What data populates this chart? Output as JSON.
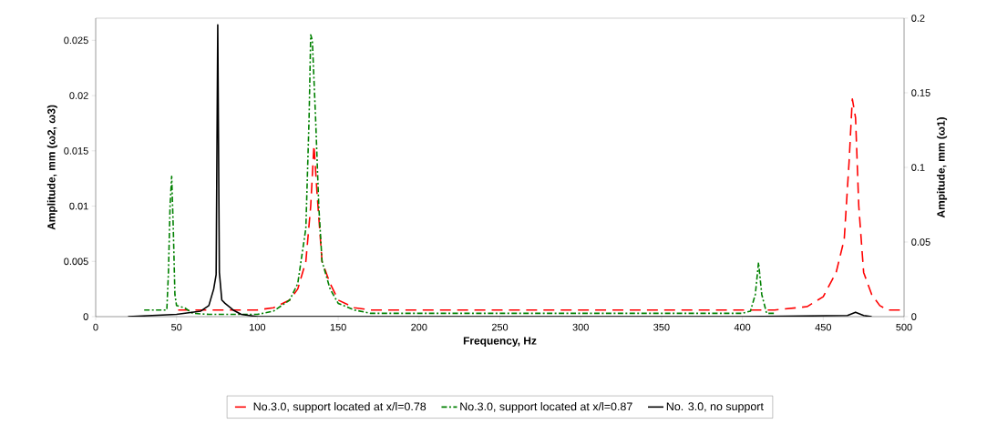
{
  "chart_data": {
    "type": "line",
    "xlabel": "Frequency, Hz",
    "ylabel": "Amplitude,  mm (ω2, ω3)",
    "y2label": "Ampitude,  mm (ω1)",
    "xlim": [
      0,
      500
    ],
    "xticks": [
      0,
      50,
      100,
      150,
      200,
      250,
      300,
      350,
      400,
      450,
      500
    ],
    "ylim": [
      0,
      0.027
    ],
    "yticks": [
      0,
      0.005,
      0.01,
      0.015,
      0.02,
      0.025
    ],
    "y2lim": [
      0,
      0.2
    ],
    "y2ticks": [
      0,
      0.05,
      0.1,
      0.15,
      0.2
    ],
    "legend": "bottom",
    "grid": false,
    "series": [
      {
        "name": "No.3.0, support located at x/l=0.78",
        "color": "#ff0000",
        "line_style": "dashed",
        "x": [
          51,
          70,
          100,
          110,
          120,
          125,
          130,
          133,
          135,
          137,
          140,
          145,
          150,
          160,
          170,
          250,
          350,
          420,
          440,
          450,
          458,
          463,
          466,
          468,
          470,
          472,
          475,
          480,
          485,
          490,
          500
        ],
        "values": [
          0.0006,
          0.0006,
          0.0006,
          0.0008,
          0.0015,
          0.0025,
          0.005,
          0.01,
          0.0155,
          0.011,
          0.005,
          0.003,
          0.0015,
          0.0008,
          0.0006,
          0.0006,
          0.0006,
          0.0006,
          0.0009,
          0.0018,
          0.004,
          0.007,
          0.014,
          0.0197,
          0.018,
          0.01,
          0.004,
          0.002,
          0.001,
          0.0006,
          0.0006
        ]
      },
      {
        "name": "No.3.0, support located at x/l=0.87",
        "color": "#008000",
        "line_style": "dashdot",
        "x": [
          30,
          44,
          45,
          46,
          47,
          48,
          49,
          50,
          55,
          60,
          70,
          90,
          100,
          110,
          120,
          125,
          130,
          132,
          133,
          134,
          136,
          138,
          140,
          145,
          150,
          160,
          170,
          300,
          400,
          405,
          408,
          410,
          412,
          415,
          420
        ],
        "values": [
          0.0006,
          0.0006,
          0.004,
          0.01,
          0.0127,
          0.008,
          0.002,
          0.001,
          0.0008,
          0.0003,
          0.0002,
          0.0002,
          0.0002,
          0.0005,
          0.0015,
          0.003,
          0.008,
          0.018,
          0.0255,
          0.025,
          0.018,
          0.01,
          0.005,
          0.0025,
          0.0012,
          0.0006,
          0.0003,
          0.0003,
          0.0003,
          0.0005,
          0.002,
          0.0049,
          0.002,
          0.0003,
          0.0003
        ]
      },
      {
        "name": "No. 3.0, no support",
        "color": "#000000",
        "line_style": "solid",
        "x": [
          20,
          50,
          65,
          70,
          73,
          74.5,
          75.5,
          76.5,
          78,
          80,
          85,
          90,
          100,
          200,
          300,
          400,
          465,
          470,
          475,
          480
        ],
        "values": [
          0,
          0.0002,
          0.0005,
          0.001,
          0.0025,
          0.0038,
          0.0264,
          0.004,
          0.0015,
          0.0012,
          0.0006,
          0.0002,
          0,
          0,
          0,
          0,
          0.0001,
          0.0004,
          0.0001,
          0
        ]
      }
    ]
  }
}
